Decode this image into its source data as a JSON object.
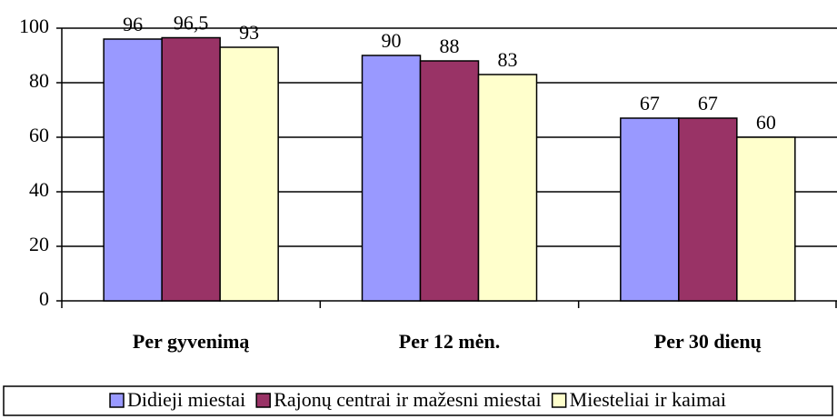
{
  "chart_data": {
    "type": "bar",
    "categories": [
      "Per gyvenimą",
      "Per 12 mėn.",
      "Per 30 dienų"
    ],
    "series": [
      {
        "name": "Didieji miestai",
        "color": "#9999ff",
        "values": [
          96,
          90,
          67
        ]
      },
      {
        "name": "Rajonų centrai ir mažesni miestai",
        "color": "#993366",
        "values": [
          96.5,
          88,
          67
        ],
        "value_labels": [
          "96,5",
          "88",
          "67"
        ]
      },
      {
        "name": "Miesteliai ir kaimai",
        "color": "#ffffcc",
        "values": [
          93,
          83,
          60
        ]
      }
    ],
    "ylim": [
      0,
      100
    ],
    "yticks": [
      0,
      20,
      40,
      60,
      80,
      100
    ],
    "grid": true,
    "legend": "bottom"
  }
}
